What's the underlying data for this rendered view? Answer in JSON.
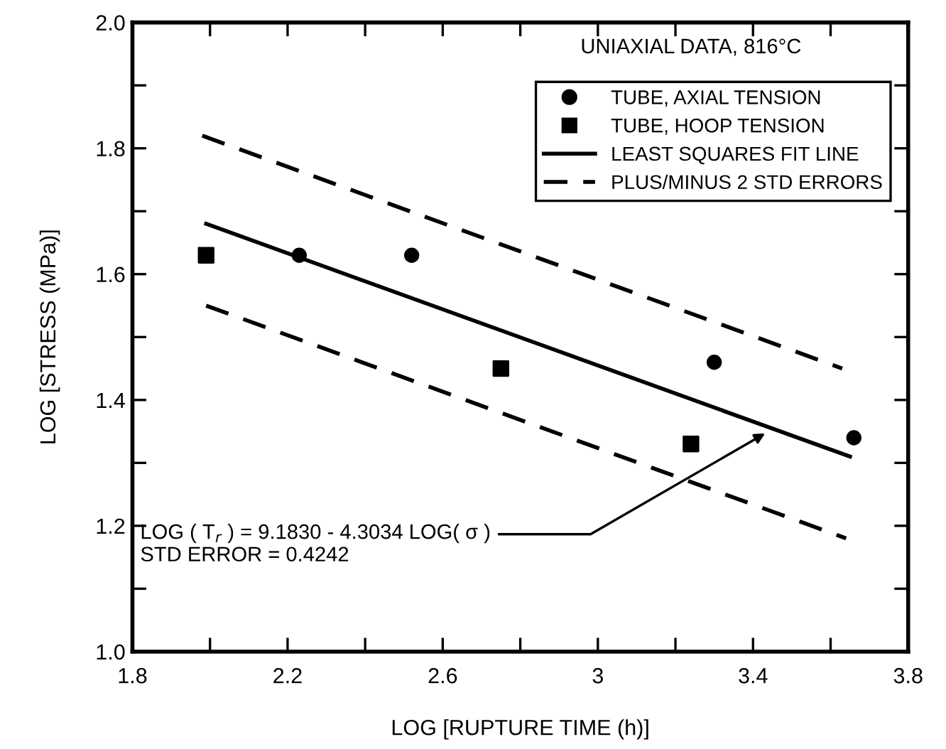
{
  "chart_data": {
    "type": "scatter",
    "xlabel": "LOG [RUPTURE TIME (h)]",
    "ylabel": "LOG [STRESS (MPa)]",
    "xlim": [
      1.8,
      3.8
    ],
    "ylim": [
      1.0,
      2.0
    ],
    "xticks": [
      1.8,
      {
        "value": 2.0,
        "label": null
      },
      2.2,
      {
        "value": 2.4,
        "label": null
      },
      2.6,
      {
        "value": 2.8,
        "label": null
      },
      {
        "value": 3.0,
        "label": "3"
      },
      {
        "value": 3.2,
        "label": null
      },
      3.4,
      {
        "value": 3.6,
        "label": null
      },
      3.8
    ],
    "yticks": [
      {
        "value": 1.0,
        "label": "1.0"
      },
      {
        "value": 1.1,
        "label": null
      },
      1.2,
      {
        "value": 1.3,
        "label": null
      },
      1.4,
      {
        "value": 1.5,
        "label": null
      },
      1.6,
      {
        "value": 1.7,
        "label": null
      },
      1.8,
      {
        "value": 1.9,
        "label": null
      },
      {
        "value": 2.0,
        "label": "2.0"
      }
    ],
    "grid": false,
    "legend": "top right",
    "series": [
      {
        "name": "TUBE, AXIAL TENSION",
        "marker": "circle",
        "color": "#000000",
        "x": [
          2.23,
          2.52,
          3.3,
          3.66
        ],
        "values": [
          1.63,
          1.63,
          1.46,
          1.34
        ]
      },
      {
        "name": "TUBE, HOOP TENSION",
        "marker": "square",
        "color": "#000000",
        "x": [
          1.99,
          2.75,
          3.24
        ],
        "values": [
          1.63,
          1.45,
          1.33
        ]
      },
      {
        "name": "LEAST SQUARES FIT LINE",
        "type": "line",
        "line_style": "solid",
        "color": "#000000",
        "x": [
          1.99,
          3.65
        ],
        "values": [
          1.68,
          1.31
        ]
      },
      {
        "name": "PLUS/MINUS 2 STD ERRORS",
        "type": "line",
        "line_style": "dashed",
        "color": "#000000",
        "x": [
          1.98,
          3.63
        ],
        "values": [
          1.82,
          1.45
        ]
      },
      {
        "type": "line",
        "line_style": "dashed",
        "color": "#000000",
        "x": [
          1.99,
          3.64
        ],
        "values": [
          1.55,
          1.18
        ]
      }
    ],
    "annotations": [
      "UNIAXIAL DATA, 816°C",
      {
        "text": "LOG ( T$_{r}$ ) = 9.1830 - 4.3034 LOG( σ )\nSTD ERROR = 0.4242",
        "x": 3.44,
        "y": 1.35
      }
    ]
  }
}
